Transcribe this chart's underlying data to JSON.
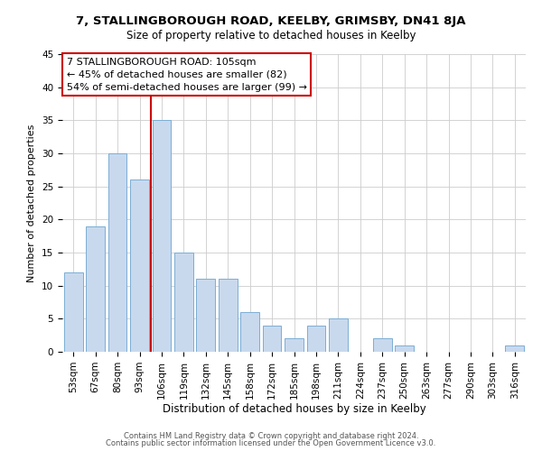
{
  "title": "7, STALLINGBOROUGH ROAD, KEELBY, GRIMSBY, DN41 8JA",
  "subtitle": "Size of property relative to detached houses in Keelby",
  "xlabel": "Distribution of detached houses by size in Keelby",
  "ylabel": "Number of detached properties",
  "footer_line1": "Contains HM Land Registry data © Crown copyright and database right 2024.",
  "footer_line2": "Contains public sector information licensed under the Open Government Licence v3.0.",
  "bar_labels": [
    "53sqm",
    "67sqm",
    "80sqm",
    "93sqm",
    "106sqm",
    "119sqm",
    "132sqm",
    "145sqm",
    "158sqm",
    "172sqm",
    "185sqm",
    "198sqm",
    "211sqm",
    "224sqm",
    "237sqm",
    "250sqm",
    "263sqm",
    "277sqm",
    "290sqm",
    "303sqm",
    "316sqm"
  ],
  "bar_values": [
    12,
    19,
    30,
    26,
    35,
    15,
    11,
    11,
    6,
    4,
    2,
    4,
    5,
    0,
    2,
    1,
    0,
    0,
    0,
    0,
    1
  ],
  "bar_color": "#c8d9ee",
  "bar_edge_color": "#7baed4",
  "ylim": [
    0,
    45
  ],
  "yticks": [
    0,
    5,
    10,
    15,
    20,
    25,
    30,
    35,
    40,
    45
  ],
  "vline_x_index": 4,
  "vline_color": "#cc0000",
  "annot_line1": "7 STALLINGBOROUGH ROAD: 105sqm",
  "annot_line2": "← 45% of detached houses are smaller (82)",
  "annot_line3": "54% of semi-detached houses are larger (99) →",
  "annotation_box_edgecolor": "#cc0000",
  "background_color": "#ffffff",
  "grid_color": "#cccccc",
  "title_fontsize": 9.5,
  "subtitle_fontsize": 8.5,
  "xlabel_fontsize": 8.5,
  "ylabel_fontsize": 8.0,
  "tick_fontsize": 7.5,
  "annot_fontsize": 8.0,
  "footer_fontsize": 6.0
}
